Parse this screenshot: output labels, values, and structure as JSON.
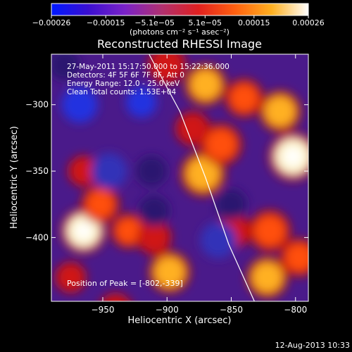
{
  "chart_data": {
    "type": "heatmap",
    "title": "Reconstructed RHESSI Image",
    "xlabel": "Heliocentric X (arcsec)",
    "ylabel": "Heliocentric Y (arcsec)",
    "xlim": [
      -990,
      -790
    ],
    "ylim": [
      -448,
      -262
    ],
    "xticks": [
      -950,
      -900,
      -850,
      -800
    ],
    "yticks": [
      -300,
      -350,
      -400
    ],
    "colorbar": {
      "ticks": [
        "-0.00026",
        "-0.00015",
        "-5.1e-05",
        "5.1e-05",
        "0.00015",
        "0.00026"
      ],
      "unit_label": "(photons cm⁻² s⁻¹ asec⁻²)",
      "range": [
        -0.00026,
        0.00026
      ],
      "colors": [
        "#0019ff",
        "#3a0fd0",
        "#7a22c8",
        "#b03070",
        "#e02020",
        "#ff6010",
        "#ffb020",
        "#ffffff"
      ]
    },
    "info_lines": [
      "27-May-2011 15:17:50.000 to 15:22:36.000",
      "Detectors: 4F 5F 6F 7F 8F, Att 0",
      "Energy Range: 12.0 - 25.0 keV",
      "Clean    Total counts: 1.53E+04"
    ],
    "peak_text": "Position of Peak = [-802,-339]",
    "peak": [
      -802,
      -339
    ],
    "sources": [
      {
        "x": -802,
        "y": -339,
        "v": 1.0,
        "r": 14
      },
      {
        "x": -812,
        "y": -305,
        "v": 0.75,
        "r": 12
      },
      {
        "x": -870,
        "y": -285,
        "v": 0.8,
        "r": 12
      },
      {
        "x": -840,
        "y": -295,
        "v": 0.55,
        "r": 11
      },
      {
        "x": -872,
        "y": -352,
        "v": 0.7,
        "r": 13
      },
      {
        "x": -858,
        "y": -330,
        "v": 0.55,
        "r": 12
      },
      {
        "x": -880,
        "y": -318,
        "v": 0.45,
        "r": 10
      },
      {
        "x": -900,
        "y": -270,
        "v": 0.45,
        "r": 11
      },
      {
        "x": -965,
        "y": -395,
        "v": 0.9,
        "r": 13
      },
      {
        "x": -952,
        "y": -375,
        "v": 0.55,
        "r": 11
      },
      {
        "x": -930,
        "y": -395,
        "v": 0.5,
        "r": 10
      },
      {
        "x": -965,
        "y": -350,
        "v": 0.35,
        "r": 9
      },
      {
        "x": -898,
        "y": -426,
        "v": 0.75,
        "r": 12
      },
      {
        "x": -910,
        "y": -400,
        "v": 0.4,
        "r": 10
      },
      {
        "x": -820,
        "y": -395,
        "v": 0.65,
        "r": 12
      },
      {
        "x": -848,
        "y": -395,
        "v": 0.45,
        "r": 10
      },
      {
        "x": -797,
        "y": -415,
        "v": 0.6,
        "r": 11
      },
      {
        "x": -822,
        "y": -430,
        "v": 0.75,
        "r": 12
      },
      {
        "x": -940,
        "y": -455,
        "v": 0.45,
        "r": 10
      },
      {
        "x": -975,
        "y": -430,
        "v": 0.35,
        "r": 9
      },
      {
        "x": -968,
        "y": -300,
        "v": -0.75,
        "r": 14
      },
      {
        "x": -920,
        "y": -298,
        "v": -0.85,
        "r": 12
      },
      {
        "x": -945,
        "y": -350,
        "v": -0.55,
        "r": 14
      },
      {
        "x": -912,
        "y": -350,
        "v": -0.5,
        "r": 12
      },
      {
        "x": -860,
        "y": -402,
        "v": -0.6,
        "r": 14
      },
      {
        "x": -850,
        "y": -375,
        "v": -0.45,
        "r": 12
      },
      {
        "x": -910,
        "y": -380,
        "v": -0.4,
        "r": 12
      },
      {
        "x": -980,
        "y": -270,
        "v": -0.4,
        "r": 12
      }
    ],
    "limb": [
      [
        -914,
        -262
      ],
      [
        -890,
        -305
      ],
      [
        -870,
        -355
      ],
      [
        -852,
        -405
      ],
      [
        -832,
        -448
      ]
    ]
  },
  "footer": {
    "timestamp": "12-Aug-2013 10:33"
  }
}
